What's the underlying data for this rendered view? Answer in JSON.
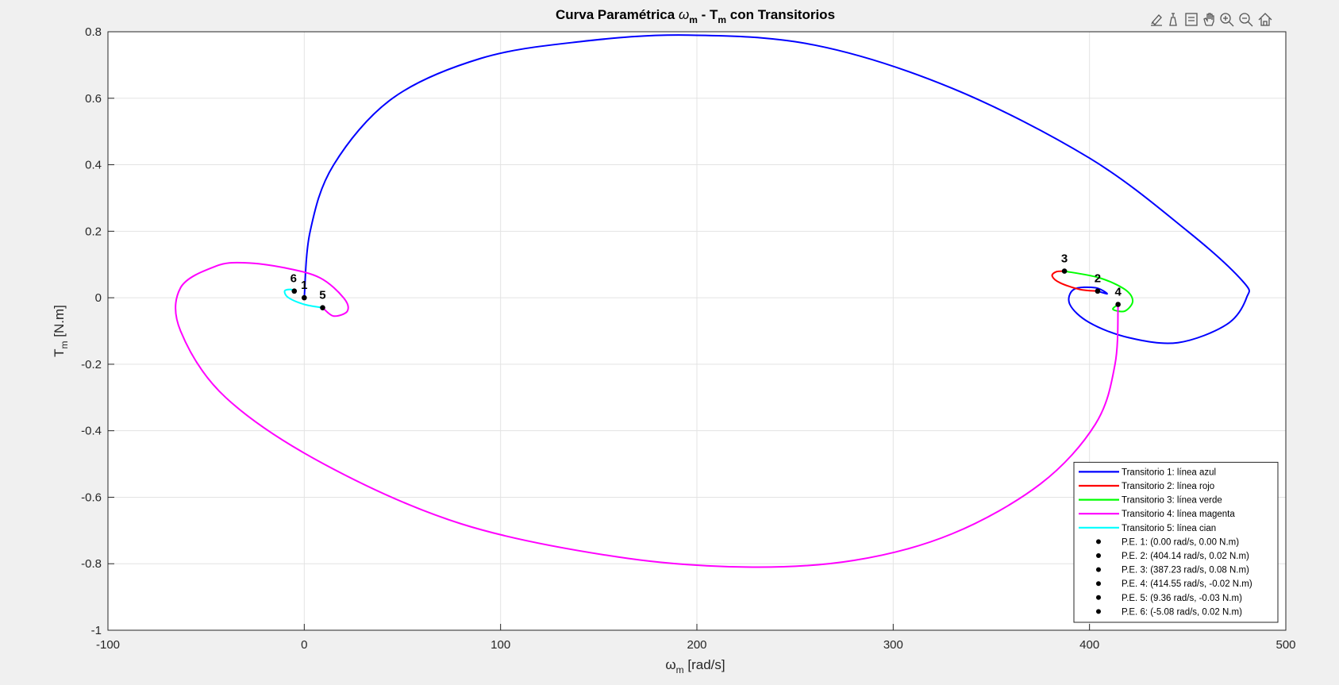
{
  "chart_data": {
    "type": "line",
    "title": {
      "main": "Curva Paramétrica ",
      "w": "ω",
      "wsub": "m",
      "mid": " - T",
      "tsub": "m",
      "end": " con Transitorios"
    },
    "xlabel": {
      "sym": "ω",
      "sub": "m",
      "unit": " [rad/s]"
    },
    "ylabel": {
      "sym": "T",
      "sub": "m",
      "unit": " [N.m]"
    },
    "xlim": [
      -100,
      500
    ],
    "ylim": [
      -1,
      0.8
    ],
    "xticks": [
      -100,
      0,
      100,
      200,
      300,
      400,
      500
    ],
    "yticks": [
      -1,
      -0.8,
      -0.6,
      -0.4,
      -0.2,
      0,
      0.2,
      0.4,
      0.6,
      0.8
    ],
    "grid": true,
    "legend_location": "bottom-right",
    "series": [
      {
        "name": "Transitorio 1: línea azul",
        "color": "#0000ff",
        "points": [
          [
            0,
            0
          ],
          [
            3,
            0.2
          ],
          [
            15,
            0.4
          ],
          [
            45,
            0.6
          ],
          [
            90,
            0.72
          ],
          [
            140,
            0.77
          ],
          [
            195,
            0.79
          ],
          [
            260,
            0.76
          ],
          [
            330,
            0.63
          ],
          [
            400,
            0.42
          ],
          [
            450,
            0.2
          ],
          [
            478,
            0.05
          ],
          [
            480,
            0
          ],
          [
            470,
            -0.08
          ],
          [
            445,
            -0.135
          ],
          [
            420,
            -0.12
          ],
          [
            400,
            -0.075
          ],
          [
            390,
            -0.02
          ],
          [
            392,
            0.025
          ],
          [
            403,
            0.03
          ],
          [
            409,
            0.012
          ],
          [
            404.14,
            0.02
          ]
        ]
      },
      {
        "name": "Transitorio 2: línea rojo",
        "color": "#ff0000",
        "points": [
          [
            404.14,
            0.02
          ],
          [
            395,
            0.025
          ],
          [
            385,
            0.045
          ],
          [
            381,
            0.065
          ],
          [
            383,
            0.078
          ],
          [
            387.23,
            0.08
          ]
        ]
      },
      {
        "name": "Transitorio 3: línea verde",
        "color": "#00ff00",
        "points": [
          [
            387.23,
            0.08
          ],
          [
            405,
            0.06
          ],
          [
            418,
            0.025
          ],
          [
            422,
            -0.01
          ],
          [
            418,
            -0.04
          ],
          [
            412,
            -0.035
          ],
          [
            414.55,
            -0.02
          ]
        ]
      },
      {
        "name": "Transitorio 4: línea magenta",
        "color": "#ff00ff",
        "points": [
          [
            414.55,
            -0.02
          ],
          [
            413,
            -0.2
          ],
          [
            403,
            -0.38
          ],
          [
            375,
            -0.56
          ],
          [
            330,
            -0.71
          ],
          [
            280,
            -0.79
          ],
          [
            225,
            -0.81
          ],
          [
            160,
            -0.78
          ],
          [
            80,
            -0.68
          ],
          [
            10,
            -0.5
          ],
          [
            -40,
            -0.3
          ],
          [
            -63,
            -0.1
          ],
          [
            -63,
            0.03
          ],
          [
            -45,
            0.095
          ],
          [
            -30,
            0.105
          ],
          [
            -10,
            0.09
          ],
          [
            8,
            0.06
          ],
          [
            20,
            0.0
          ],
          [
            22,
            -0.04
          ],
          [
            15,
            -0.055
          ],
          [
            9.36,
            -0.03
          ]
        ]
      },
      {
        "name": "Transitorio 5: línea cian",
        "color": "#00ffff",
        "points": [
          [
            9.36,
            -0.03
          ],
          [
            0,
            -0.02
          ],
          [
            -8,
            0.0
          ],
          [
            -10,
            0.02
          ],
          [
            -7,
            0.025
          ],
          [
            -5.08,
            0.02
          ]
        ]
      }
    ],
    "equilibrium_points": [
      {
        "label": "1",
        "x": 0.0,
        "y": 0.0,
        "legend": "P.E. 1: (0.00 rad/s, 0.00 N.m)"
      },
      {
        "label": "2",
        "x": 404.14,
        "y": 0.02,
        "legend": "P.E. 2: (404.14 rad/s, 0.02 N.m)"
      },
      {
        "label": "3",
        "x": 387.23,
        "y": 0.08,
        "legend": "P.E. 3: (387.23 rad/s, 0.08 N.m)"
      },
      {
        "label": "4",
        "x": 414.55,
        "y": -0.02,
        "legend": "P.E. 4: (414.55 rad/s, -0.02 N.m)"
      },
      {
        "label": "5",
        "x": 9.36,
        "y": -0.03,
        "legend": "P.E. 5: (9.36 rad/s, -0.03 N.m)"
      },
      {
        "label": "6",
        "x": -5.08,
        "y": 0.02,
        "legend": "P.E. 6: (-5.08 rad/s, 0.02 N.m)"
      }
    ]
  },
  "toolbar": {
    "icons": [
      "brush-icon",
      "data-tips-icon",
      "legend-icon",
      "pan-icon",
      "zoom-in-icon",
      "zoom-out-icon",
      "home-icon"
    ]
  }
}
